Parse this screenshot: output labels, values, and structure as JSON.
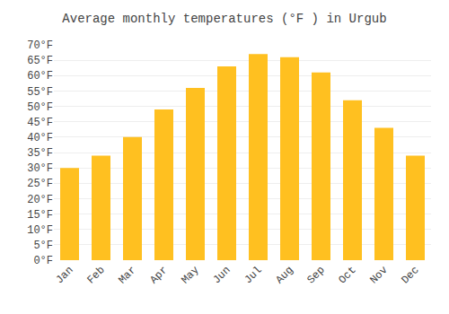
{
  "chart_data": {
    "type": "bar",
    "title": "Average monthly temperatures (°F ) in Urgub",
    "categories": [
      "Jan",
      "Feb",
      "Mar",
      "Apr",
      "May",
      "Jun",
      "Jul",
      "Aug",
      "Sep",
      "Oct",
      "Nov",
      "Dec"
    ],
    "values": [
      30,
      34,
      40,
      49,
      56,
      63,
      67,
      66,
      61,
      52,
      43,
      34
    ],
    "color": "#FFC020",
    "ylim": [
      0,
      70
    ],
    "yticks": [
      {
        "value": 0,
        "label": "0°F"
      },
      {
        "value": 5,
        "label": "5°F"
      },
      {
        "value": 10,
        "label": "10°F"
      },
      {
        "value": 15,
        "label": "15°F"
      },
      {
        "value": 20,
        "label": "20°F"
      },
      {
        "value": 25,
        "label": "25°F"
      },
      {
        "value": 30,
        "label": "30°F"
      },
      {
        "value": 35,
        "label": "35°F"
      },
      {
        "value": 40,
        "label": "40°F"
      },
      {
        "value": 45,
        "label": "45°F"
      },
      {
        "value": 50,
        "label": "50°F"
      },
      {
        "value": 55,
        "label": "55°F"
      },
      {
        "value": 60,
        "label": "60°F"
      },
      {
        "value": 65,
        "label": "65°F"
      },
      {
        "value": 70,
        "label": "70°F"
      }
    ],
    "grid": true
  }
}
